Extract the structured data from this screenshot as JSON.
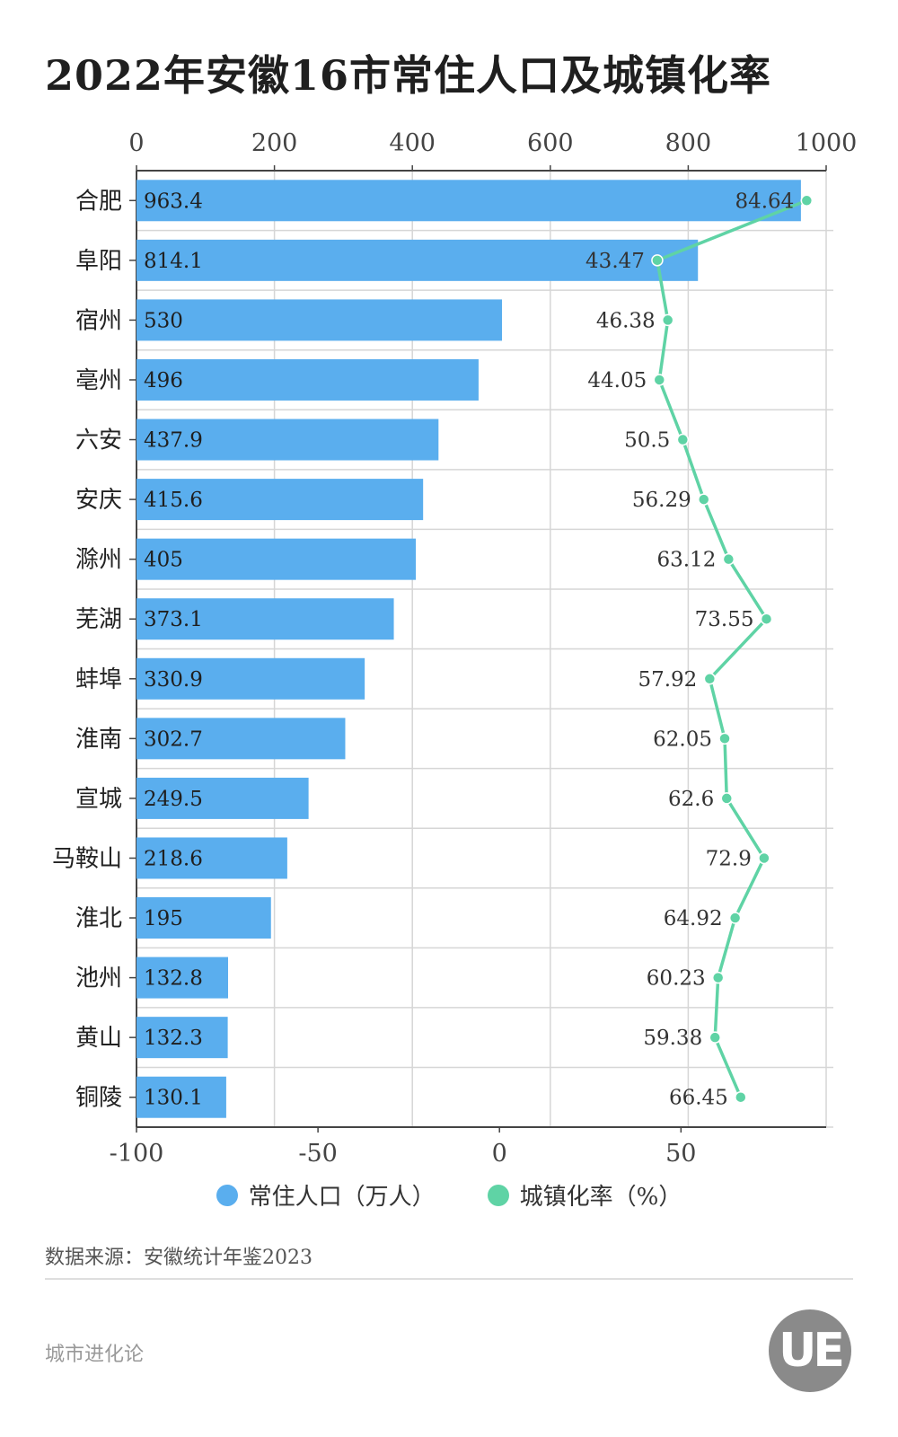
{
  "page": {
    "title": "2022年安徽16市常住人口及城镇化率",
    "source": "数据来源：安徽统计年鉴2023",
    "brand": "城市进化论",
    "logo_text": "UE"
  },
  "legend": {
    "population": "常住人口（万人）",
    "urbanization": "城镇化率（%）"
  },
  "colors": {
    "bar": "#5aaeee",
    "line": "#5fd3a5",
    "grid": "#d6d6d6",
    "axis": "#444444"
  },
  "chart_data": {
    "type": "bar",
    "categories": [
      "合肥",
      "阜阳",
      "宿州",
      "亳州",
      "六安",
      "安庆",
      "滁州",
      "芜湖",
      "蚌埠",
      "淮南",
      "宣城",
      "马鞍山",
      "淮北",
      "池州",
      "黄山",
      "铜陵"
    ],
    "series": [
      {
        "name": "常住人口（万人）",
        "type": "bar",
        "axis": "top",
        "values": [
          963.4,
          814.1,
          530,
          496,
          437.9,
          415.6,
          405,
          373.1,
          330.9,
          302.7,
          249.5,
          218.6,
          195,
          132.8,
          132.3,
          130.1
        ]
      },
      {
        "name": "城镇化率（%）",
        "type": "line",
        "axis": "bottom",
        "values": [
          84.64,
          43.47,
          46.38,
          44.05,
          50.5,
          56.29,
          63.12,
          73.55,
          57.92,
          62.05,
          62.6,
          72.9,
          64.92,
          60.23,
          59.38,
          66.45
        ]
      }
    ],
    "top_axis": {
      "ticks": [
        0,
        200,
        400,
        600,
        800,
        1000
      ],
      "range": [
        0,
        1000
      ]
    },
    "bottom_axis": {
      "ticks": [
        -100,
        -50,
        0,
        50
      ],
      "range": [
        -100,
        90
      ]
    },
    "grid": true,
    "legend_position": "bottom"
  }
}
